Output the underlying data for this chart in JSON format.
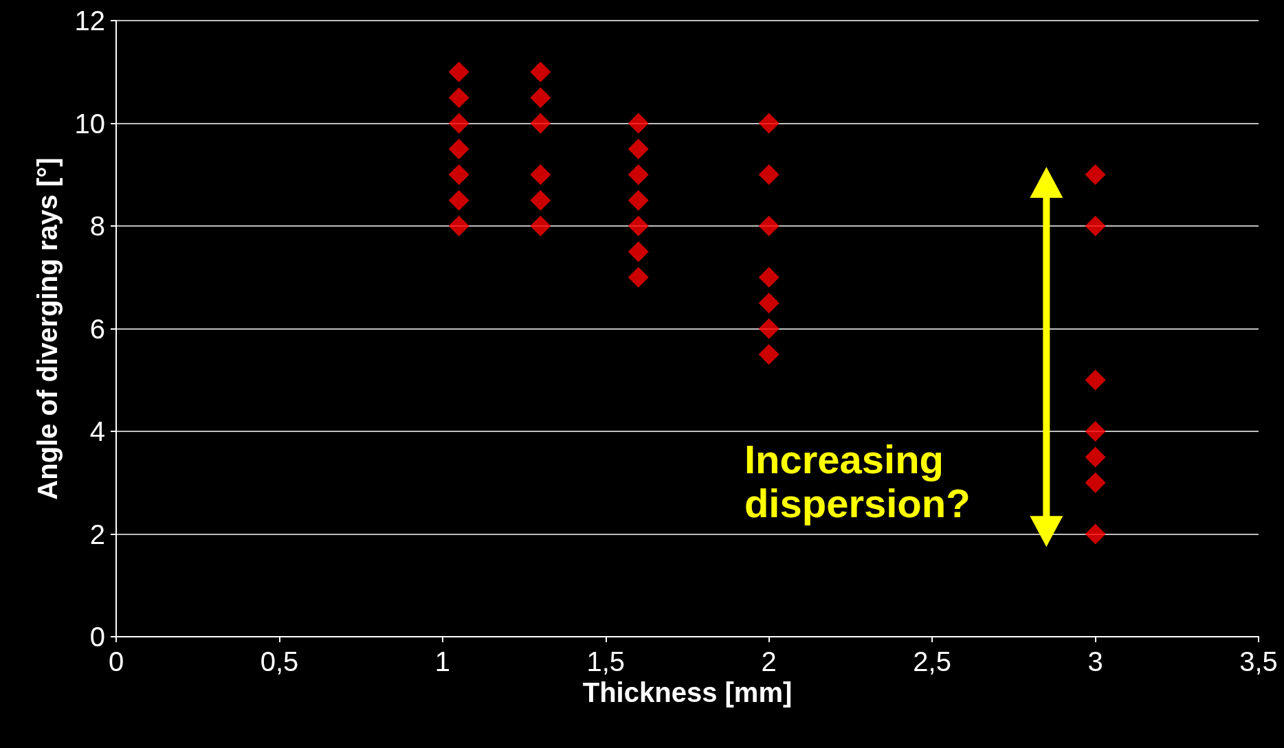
{
  "chart_data": {
    "type": "scatter",
    "xlabel": "Thickness [mm]",
    "ylabel": "Angle of diverging rays [°]",
    "annotations": [
      "Increasing dispersion?"
    ],
    "series": [
      {
        "color": "#ff0000",
        "x": [
          1.05,
          1.05,
          1.05,
          1.05,
          1.05,
          1.05,
          1.05,
          1.3,
          1.3,
          1.3,
          1.3,
          1.3,
          1.3,
          1.6,
          1.6,
          1.6,
          1.6,
          1.6,
          1.6,
          1.6,
          2,
          2,
          2,
          2,
          2,
          2,
          2,
          3,
          3,
          3,
          3,
          3,
          3,
          3
        ],
        "values": [
          11,
          10.5,
          10,
          9.5,
          9,
          8.5,
          8,
          11,
          10.5,
          10,
          9,
          8.5,
          8,
          10,
          9.5,
          9,
          8.5,
          8,
          7.5,
          7,
          10,
          9,
          8,
          7,
          6.5,
          6,
          5.5,
          9,
          8,
          5,
          4,
          3.5,
          3,
          2
        ]
      }
    ],
    "xlim": [
      0,
      3.5
    ],
    "xticks": [
      0,
      {
        "value": 0.5,
        "label": "0,5"
      },
      1,
      {
        "value": 1.5,
        "label": "1,5"
      },
      2,
      {
        "value": 2.5,
        "label": "2,5"
      },
      3,
      {
        "value": 3.5,
        "label": "3,5"
      }
    ],
    "ylim": [
      0,
      12
    ],
    "yticks": [
      0,
      2,
      4,
      6,
      8,
      10,
      12
    ],
    "grid": "y",
    "marker": "diamond"
  }
}
